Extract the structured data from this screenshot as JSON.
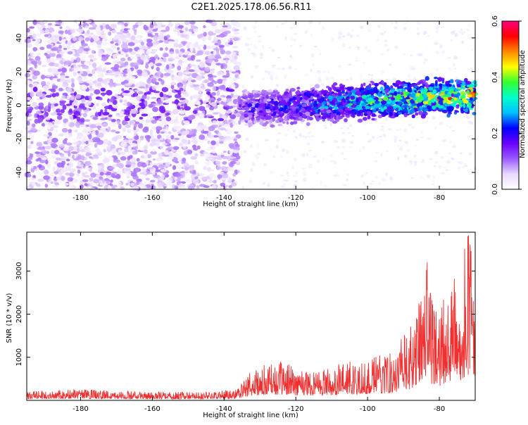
{
  "title": "C2E1.2025.178.06.56.R11",
  "colors": {
    "snr_line": "#f03030",
    "spectrogram_low": "#ffffff",
    "spectrogram_mid": "#7a2be0",
    "spectrogram_high": "#ff0000"
  },
  "colorbar": {
    "label": "Normalized spectral amplitude",
    "range": [
      0.0,
      0.6
    ],
    "ticks": [
      "0.0",
      "0.2",
      "0.4",
      "0.6"
    ],
    "colormap": [
      "#ffffff",
      "#e8d8ff",
      "#9b59ff",
      "#6a00ff",
      "#0000ff",
      "#00bfff",
      "#00ffcc",
      "#33ff33",
      "#ffff00",
      "#ff8800",
      "#ff0000",
      "#ff0080"
    ]
  },
  "chart_data": [
    {
      "type": "heatmap",
      "title": "C2E1.2025.178.06.56.R11",
      "xlabel": "Height of straight line (km)",
      "ylabel": "Frequency (Hz)",
      "xlim": [
        -195,
        -70
      ],
      "ylim": [
        -50,
        50
      ],
      "xticks": [
        -180,
        -160,
        -140,
        -120,
        -100,
        -80
      ],
      "yticks": [
        -40,
        -20,
        0,
        20,
        40
      ],
      "xtick_labels": [
        "-180",
        "-160",
        "-140",
        "-120",
        "-100",
        "-80"
      ],
      "ytick_labels": [
        "-40",
        "-20",
        "0",
        "20",
        "40"
      ],
      "zlim": [
        0,
        0.6
      ],
      "zlabel": "Normalized spectral amplitude",
      "regions": [
        {
          "x_range": [
            -195,
            -136
          ],
          "freq_range": [
            -50,
            50
          ],
          "amplitude": 0.08
        },
        {
          "x_range": [
            -136,
            -70
          ],
          "freq_center": -2,
          "freq_halfwidth": 10,
          "amplitude_start": 0.15,
          "amplitude_end": 0.45
        }
      ]
    },
    {
      "type": "line",
      "xlabel": "Height of straight line (km)",
      "ylabel": "SNR (10 * v/v)",
      "xlim": [
        -195,
        -70
      ],
      "ylim": [
        0,
        3900
      ],
      "xticks": [
        -180,
        -160,
        -140,
        -120,
        -100,
        -80
      ],
      "yticks": [
        1000,
        2000,
        3000
      ],
      "xtick_labels": [
        "-180",
        "-160",
        "-140",
        "-120",
        "-100",
        "-80"
      ],
      "ytick_labels": [
        "1000",
        "2000",
        "3000"
      ],
      "series": [
        {
          "x": [
            -195,
            -190,
            -185,
            -180,
            -175,
            -170,
            -165,
            -160,
            -155,
            -150,
            -145,
            -140,
            -136,
            -133,
            -130,
            -125,
            -120,
            -115,
            -110,
            -105,
            -100,
            -95,
            -92,
            -90,
            -88,
            -86,
            -84,
            -82,
            -80,
            -78,
            -76,
            -74,
            -72,
            -70
          ],
          "y": [
            200,
            230,
            250,
            260,
            240,
            230,
            210,
            200,
            200,
            200,
            210,
            230,
            300,
            650,
            800,
            900,
            800,
            750,
            800,
            900,
            950,
            1100,
            1300,
            1500,
            1700,
            2100,
            3900,
            2400,
            2200,
            2600,
            2800,
            3100,
            3900,
            2900
          ],
          "color": "#f03030"
        }
      ]
    }
  ]
}
